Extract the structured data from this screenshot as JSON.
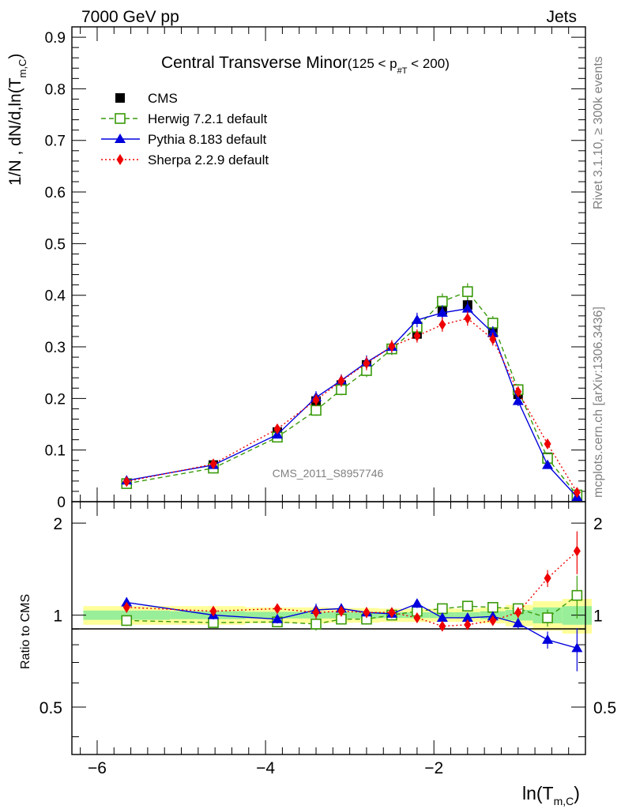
{
  "header": {
    "energy": "7000 GeV pp",
    "process": "Jets",
    "rivet": "Rivet 3.1.10, ≥ 300k events",
    "mcplots": "mcplots.cern.ch [arXiv:1306.3436]",
    "analysis_id": "CMS_2011_S8957746"
  },
  "colors": {
    "cms": "#000000",
    "herwig": "#3a9a0a",
    "pythia": "#0000dd",
    "sherpa": "#ee0000",
    "band_inner": "#99ee99",
    "band_outer": "#ffff99"
  },
  "chart_data": [
    {
      "type": "scatter",
      "title": "Central Transverse Minor",
      "title_cut": {
        "lo": "(125 < p",
        "sub": "#T",
        "hi": " < 200)"
      },
      "ylabel": "1/N , dN/d,ln(T",
      "ylabel_sub": "m,C",
      "ylim": [
        0,
        0.92
      ],
      "xlim": [
        -6.3,
        -0.2
      ],
      "yticks": [
        "0",
        "0.1",
        "0.2",
        "0.3",
        "0.4",
        "0.5",
        "0.6",
        "0.7",
        "0.8",
        "0.9"
      ],
      "x": [
        -5.65,
        -4.62,
        -3.86,
        -3.4,
        -3.1,
        -2.8,
        -2.5,
        -2.2,
        -1.9,
        -1.6,
        -1.3,
        -1.0,
        -0.65,
        -0.3
      ],
      "series": [
        {
          "name": "CMS",
          "key": "cms",
          "values": [
            0.036,
            0.071,
            0.135,
            0.195,
            0.226,
            0.265,
            0.297,
            0.325,
            0.372,
            0.381,
            0.328,
            0.208,
            0.086,
            0.011
          ]
        },
        {
          "name": "Herwig 7.2.1 default",
          "key": "herwig",
          "values": [
            0.035,
            0.065,
            0.125,
            0.177,
            0.217,
            0.254,
            0.296,
            0.338,
            0.388,
            0.407,
            0.346,
            0.217,
            0.084,
            0.013
          ]
        },
        {
          "name": "Pythia 8.183 default",
          "key": "pythia",
          "values": [
            0.041,
            0.071,
            0.13,
            0.202,
            0.235,
            0.27,
            0.3,
            0.352,
            0.366,
            0.374,
            0.327,
            0.195,
            0.071,
            0.009
          ]
        },
        {
          "name": "Sherpa 2.2.9 default",
          "key": "sherpa",
          "values": [
            0.039,
            0.073,
            0.141,
            0.197,
            0.234,
            0.268,
            0.301,
            0.321,
            0.343,
            0.355,
            0.315,
            0.213,
            0.112,
            0.018
          ]
        }
      ]
    },
    {
      "type": "scatter",
      "ylabel": "Ratio to CMS",
      "xlabel": "ln(T",
      "xlabel_sub": "m,C",
      "xticks": [
        "−6",
        "−4",
        "−2"
      ],
      "yticks": [
        "0.5",
        "1",
        "2"
      ],
      "ylim": [
        0.35,
        2.35
      ],
      "series": [
        {
          "name": "Herwig 7.2.1 default",
          "key": "herwig",
          "values": [
            0.96,
            0.945,
            0.95,
            0.935,
            0.97,
            0.97,
            1.0,
            1.03,
            1.05,
            1.07,
            1.06,
            1.05,
            0.98,
            1.16
          ]
        },
        {
          "name": "Pythia 8.183 default",
          "key": "pythia",
          "values": [
            1.1,
            1.0,
            0.97,
            1.04,
            1.05,
            1.02,
            1.01,
            1.09,
            0.98,
            0.98,
            0.99,
            0.94,
            0.83,
            0.78
          ]
        },
        {
          "name": "Sherpa 2.2.9 default",
          "key": "sherpa",
          "values": [
            1.06,
            1.03,
            1.05,
            1.02,
            1.03,
            1.02,
            1.02,
            0.98,
            0.92,
            0.93,
            0.96,
            1.02,
            1.32,
            1.62
          ]
        }
      ]
    }
  ]
}
